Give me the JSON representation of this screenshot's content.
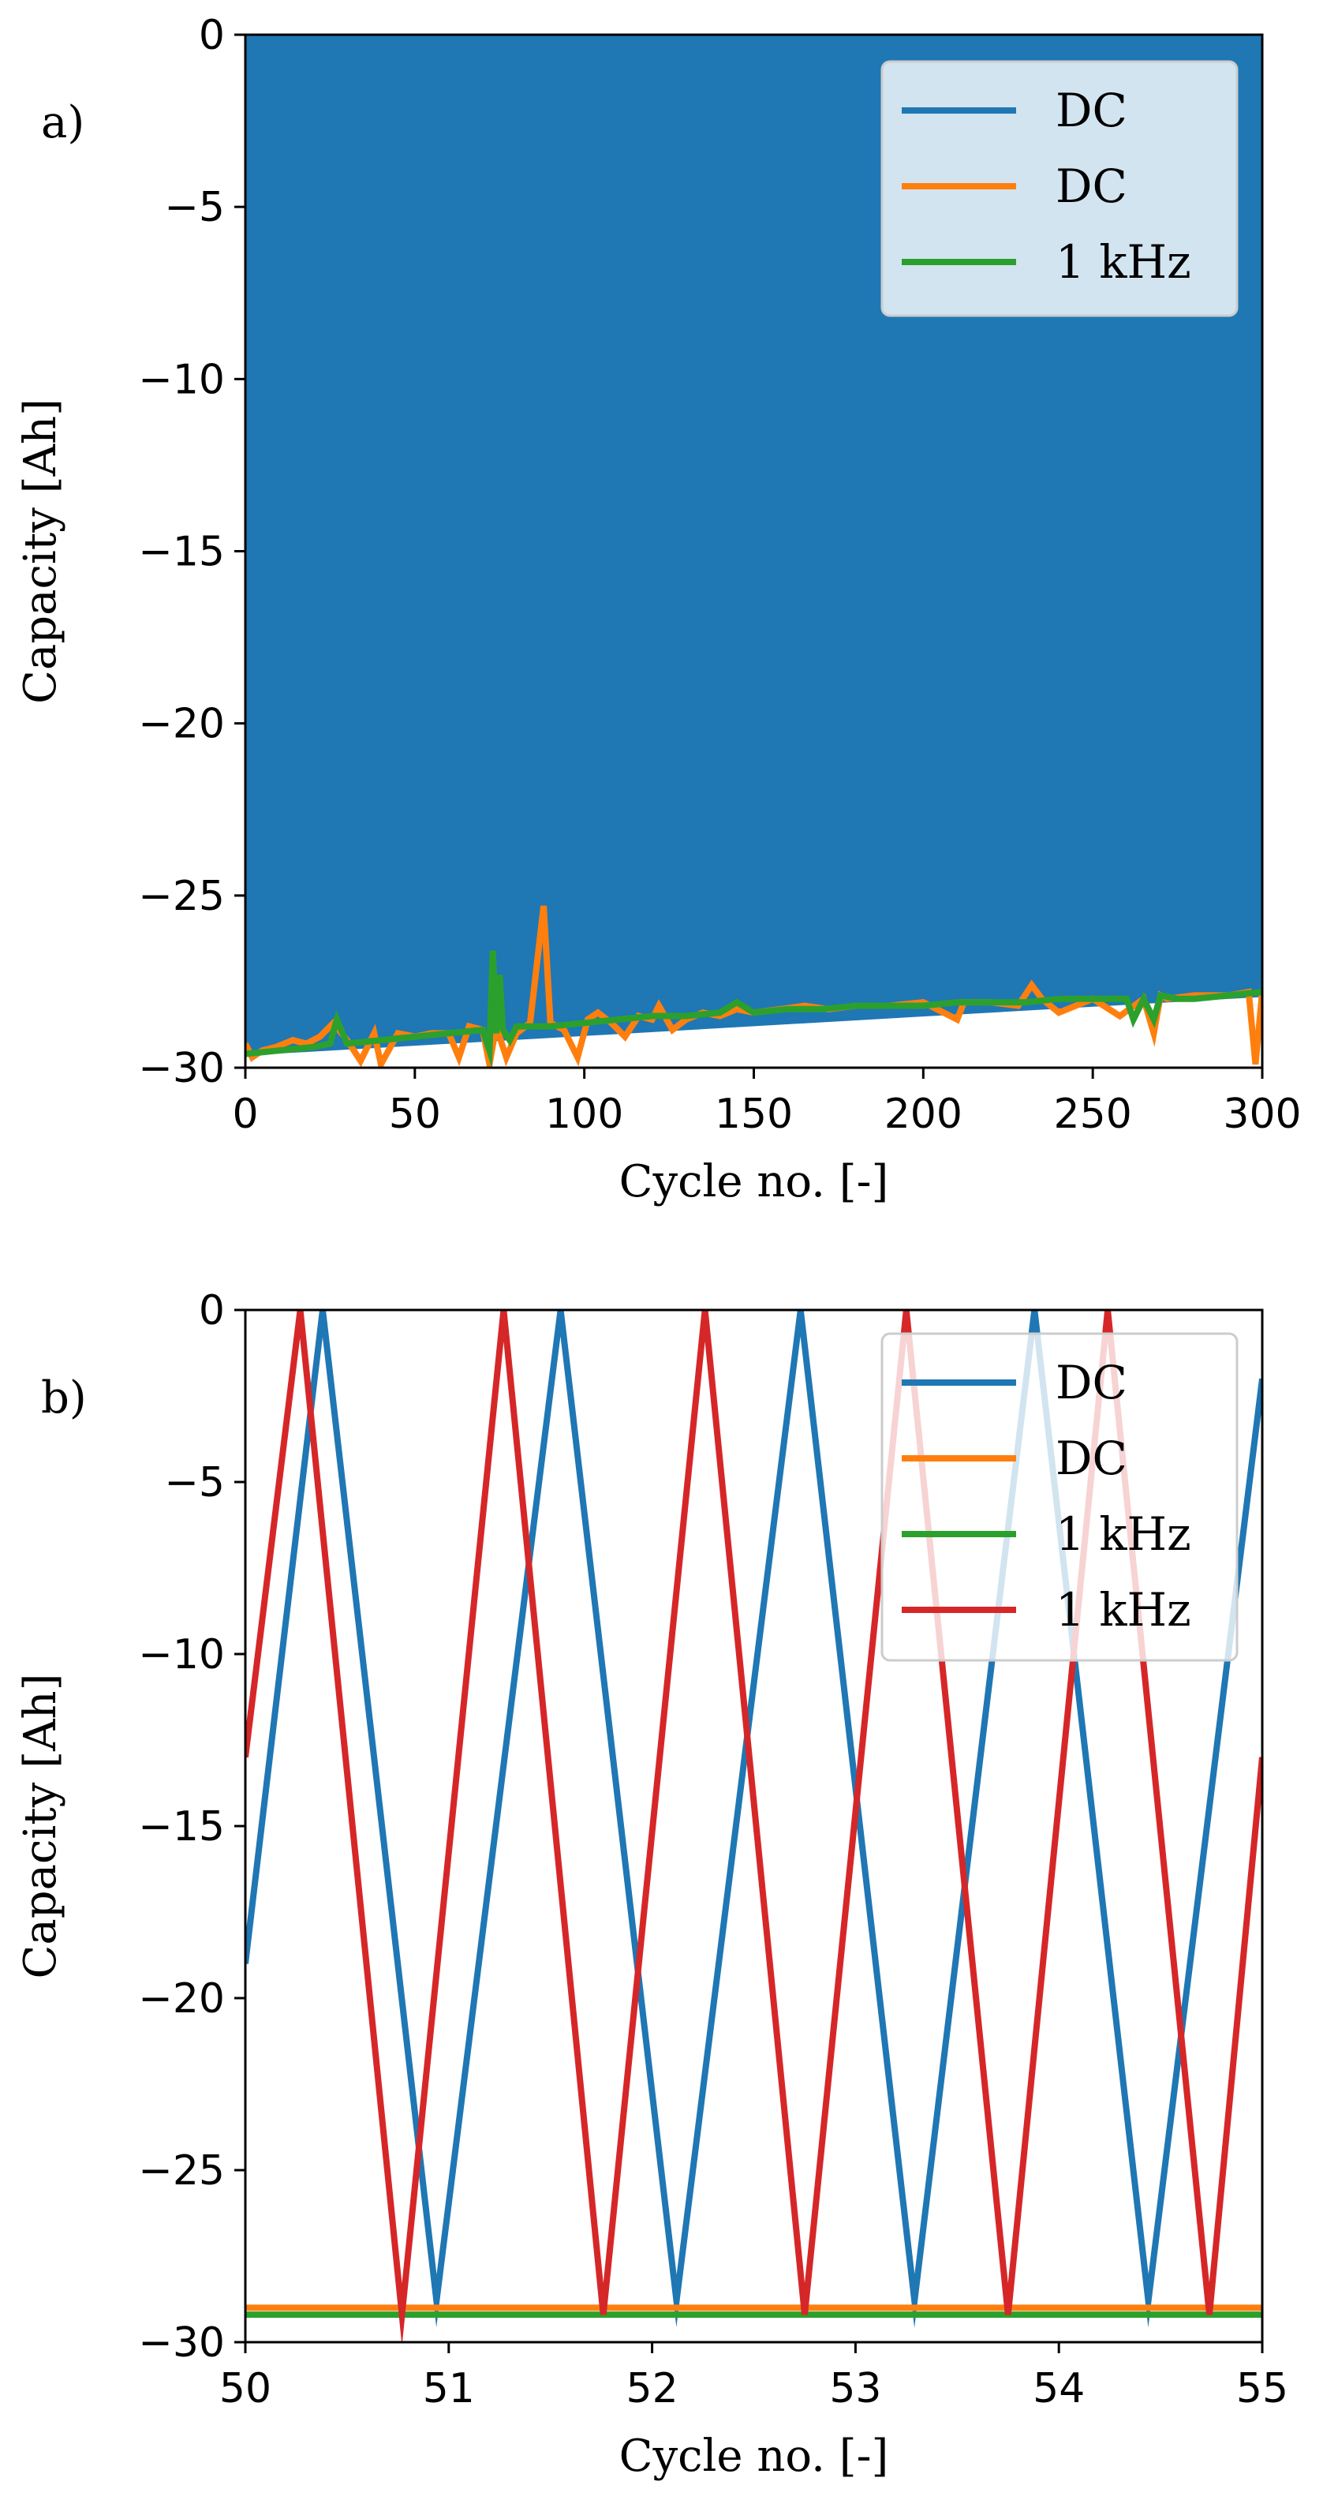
{
  "chart_data": [
    {
      "type": "line",
      "panel_label": "a)",
      "xlabel": "Cycle no. [-]",
      "ylabel": "Capacity [Ah]",
      "xlim": [
        0,
        300
      ],
      "ylim": [
        -30,
        0
      ],
      "xticks": [
        0,
        50,
        100,
        150,
        200,
        250,
        300
      ],
      "yticks": [
        -30,
        -25,
        -20,
        -15,
        -10,
        -5,
        0
      ],
      "xtick_labels": [
        "0",
        "50",
        "100",
        "150",
        "200",
        "250",
        "300"
      ],
      "ytick_labels": [
        "−30",
        "−25",
        "−20",
        "−15",
        "−10",
        "−5",
        "0"
      ],
      "legend_position": "top-right",
      "series": [
        {
          "name": "DC",
          "color": "#1f77b4",
          "style": "dense-oscillation-fill",
          "x": [
            0,
            300
          ],
          "min": [
            -29.6,
            -27.9
          ],
          "max": [
            0,
            0
          ]
        },
        {
          "name": "DC",
          "color": "#ff7f0e",
          "x": [
            0,
            2,
            5,
            9,
            14,
            18,
            22,
            26,
            30,
            34,
            38,
            40,
            45,
            50,
            55,
            60,
            63,
            66,
            70,
            72,
            74,
            77,
            80,
            84,
            88,
            90,
            94,
            98,
            101,
            104,
            108,
            112,
            116,
            120,
            122,
            126,
            130,
            135,
            140,
            145,
            150,
            158,
            165,
            172,
            180,
            190,
            200,
            210,
            212,
            220,
            228,
            232,
            235,
            240,
            250,
            258,
            265,
            268,
            270,
            272,
            280,
            290,
            296,
            298,
            300
          ],
          "values": [
            -29.3,
            -29.7,
            -29.5,
            -29.4,
            -29.2,
            -29.3,
            -29.1,
            -28.7,
            -29.2,
            -29.8,
            -29.0,
            -29.9,
            -29.0,
            -29.1,
            -29.0,
            -29.0,
            -29.7,
            -28.8,
            -28.9,
            -29.9,
            -28.8,
            -29.7,
            -29.0,
            -28.7,
            -25.3,
            -28.7,
            -28.9,
            -29.7,
            -28.6,
            -28.4,
            -28.7,
            -29.1,
            -28.5,
            -28.6,
            -28.2,
            -28.9,
            -28.6,
            -28.4,
            -28.5,
            -28.3,
            -28.4,
            -28.3,
            -28.2,
            -28.3,
            -28.2,
            -28.2,
            -28.1,
            -28.6,
            -28.1,
            -28.1,
            -28.2,
            -27.6,
            -28.0,
            -28.4,
            -28.0,
            -28.5,
            -28.0,
            -29.0,
            -27.9,
            -28.0,
            -27.9,
            -27.9,
            -27.8,
            -29.9,
            -27.8
          ]
        },
        {
          "name": "1 kHz",
          "color": "#2ca02c",
          "x": [
            0,
            10,
            20,
            25,
            27,
            30,
            40,
            50,
            60,
            70,
            72,
            73,
            74,
            75,
            76,
            78,
            80,
            90,
            100,
            110,
            120,
            130,
            140,
            145,
            150,
            160,
            170,
            180,
            190,
            200,
            210,
            220,
            230,
            240,
            250,
            260,
            262,
            265,
            268,
            270,
            275,
            280,
            290,
            300
          ],
          "values": [
            -29.6,
            -29.5,
            -29.4,
            -29.3,
            -28.6,
            -29.3,
            -29.2,
            -29.1,
            -29.0,
            -28.9,
            -29.5,
            -26.6,
            -29.0,
            -27.3,
            -28.9,
            -29.2,
            -28.8,
            -28.8,
            -28.7,
            -28.6,
            -28.5,
            -28.5,
            -28.4,
            -28.1,
            -28.4,
            -28.3,
            -28.3,
            -28.2,
            -28.2,
            -28.2,
            -28.1,
            -28.1,
            -28.1,
            -28.0,
            -28.0,
            -28.0,
            -28.6,
            -28.0,
            -28.6,
            -27.9,
            -28.0,
            -28.0,
            -27.9,
            -27.8
          ]
        }
      ]
    },
    {
      "type": "line",
      "panel_label": "b)",
      "xlabel": "Cycle no. [-]",
      "ylabel": "Capacity [Ah]",
      "xlim": [
        50,
        55
      ],
      "ylim": [
        -30,
        0
      ],
      "xticks": [
        50,
        51,
        52,
        53,
        54,
        55
      ],
      "yticks": [
        -30,
        -25,
        -20,
        -15,
        -10,
        -5,
        0
      ],
      "xtick_labels": [
        "50",
        "51",
        "52",
        "53",
        "54",
        "55"
      ],
      "ytick_labels": [
        "−30",
        "−25",
        "−20",
        "−15",
        "−10",
        "−5",
        "0"
      ],
      "legend_position": "top-right",
      "series": [
        {
          "name": "DC",
          "color": "#1f77b4",
          "x": [
            50.0,
            50.38,
            50.94,
            51.55,
            52.12,
            52.73,
            53.29,
            53.88,
            54.44,
            55.0
          ],
          "values": [
            -19.0,
            0.0,
            -28.8,
            0.0,
            -28.8,
            0.0,
            -28.8,
            0.0,
            -28.8,
            -2.0
          ]
        },
        {
          "name": "DC",
          "color": "#ff7f0e",
          "x": [
            50.0,
            55.0
          ],
          "values": [
            -29.0,
            -29.0
          ]
        },
        {
          "name": "1 kHz",
          "color": "#2ca02c",
          "x": [
            50.0,
            55.0
          ],
          "values": [
            -29.2,
            -29.2
          ]
        },
        {
          "name": "1 kHz",
          "color": "#d62728",
          "x": [
            50.0,
            50.27,
            50.77,
            51.27,
            51.76,
            52.26,
            52.75,
            53.25,
            53.75,
            54.24,
            54.74,
            55.0
          ],
          "values": [
            -13.0,
            0.0,
            -29.2,
            0.0,
            -29.2,
            0.0,
            -29.2,
            0.0,
            -29.2,
            0.0,
            -29.2,
            -13.0
          ]
        }
      ]
    }
  ]
}
